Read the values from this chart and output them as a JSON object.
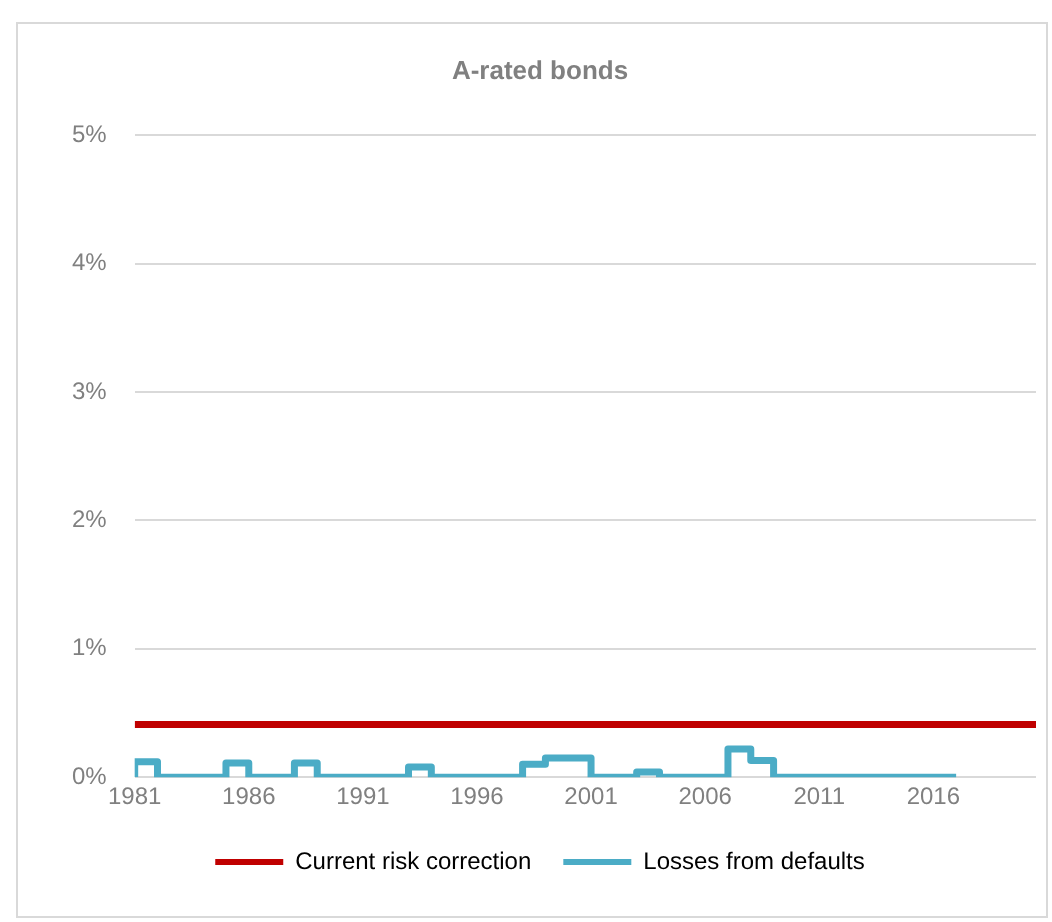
{
  "chart_data": {
    "type": "line",
    "title": "A-rated bonds",
    "xlim": [
      1981,
      2020.5
    ],
    "xticks": [
      1981,
      1986,
      1991,
      1996,
      2001,
      2006,
      2011,
      2016
    ],
    "ylim": [
      0,
      5
    ],
    "yticks": [
      {
        "value": 0,
        "label": "0%"
      },
      {
        "value": 1,
        "label": "1%"
      },
      {
        "value": 2,
        "label": "2%"
      },
      {
        "value": 3,
        "label": "3%"
      },
      {
        "value": 4,
        "label": "4%"
      },
      {
        "value": 5,
        "label": "5%"
      }
    ],
    "grid": "y",
    "legend": "bottom",
    "marker": "none",
    "series": [
      {
        "name": "Current risk correction",
        "type": "line",
        "color": "#c00000",
        "x": [
          1981,
          2020.5
        ],
        "values": [
          0.41,
          0.41
        ]
      },
      {
        "name": "Losses from defaults",
        "type": "step",
        "color": "#4bacc6",
        "x": [
          1981,
          1982,
          1983,
          1984,
          1985,
          1986,
          1987,
          1988,
          1989,
          1990,
          1991,
          1992,
          1993,
          1994,
          1995,
          1996,
          1997,
          1998,
          1999,
          2000,
          2001,
          2002,
          2003,
          2004,
          2005,
          2006,
          2007,
          2008,
          2009,
          2010,
          2011,
          2012,
          2013,
          2014,
          2015,
          2016,
          2017
        ],
        "values": [
          0,
          0.12,
          0,
          0,
          0,
          0.11,
          0,
          0,
          0.11,
          0,
          0,
          0,
          0,
          0.08,
          0,
          0,
          0,
          0,
          0.1,
          0.15,
          0.15,
          0,
          0,
          0.04,
          0,
          0,
          0,
          0.22,
          0.13,
          0,
          0,
          0,
          0,
          0,
          0,
          0,
          0
        ]
      }
    ]
  }
}
